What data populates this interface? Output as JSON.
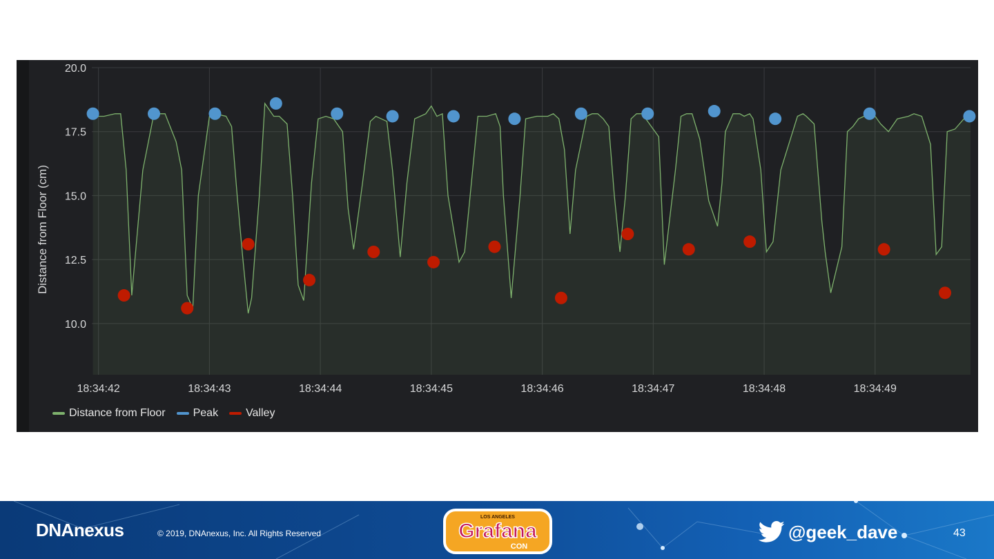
{
  "chart_data": {
    "type": "line",
    "ylabel": "Distance from Floor (cm)",
    "ylim": [
      8.0,
      20.0
    ],
    "yticks": [
      "20.0",
      "17.5",
      "15.0",
      "12.5",
      "10.0"
    ],
    "yticks_values": [
      20.0,
      17.5,
      15.0,
      12.5,
      10.0
    ],
    "xlim": [
      41.94,
      49.86
    ],
    "xticks": [
      "18:34:42",
      "18:34:43",
      "18:34:44",
      "18:34:45",
      "18:34:46",
      "18:34:47",
      "18:34:48",
      "18:34:49"
    ],
    "xticks_values": [
      42,
      43,
      44,
      45,
      46,
      47,
      48,
      49
    ],
    "grid": true,
    "legend_position": "bottom-left",
    "series": [
      {
        "name": "Distance from Floor",
        "color": "#7eb26d",
        "kind": "line",
        "x": [
          41.95,
          42.05,
          42.15,
          42.2,
          42.25,
          42.3,
          42.4,
          42.5,
          42.6,
          42.7,
          42.75,
          42.8,
          42.85,
          42.9,
          43.0,
          43.05,
          43.15,
          43.2,
          43.25,
          43.3,
          43.35,
          43.38,
          43.45,
          43.5,
          43.58,
          43.63,
          43.7,
          43.75,
          43.8,
          43.85,
          43.92,
          43.98,
          44.05,
          44.12,
          44.2,
          44.25,
          44.3,
          44.38,
          44.45,
          44.5,
          44.55,
          44.6,
          44.65,
          44.72,
          44.78,
          44.85,
          44.9,
          44.95,
          45.0,
          45.05,
          45.1,
          45.15,
          45.25,
          45.3,
          45.35,
          45.42,
          45.5,
          45.58,
          45.62,
          45.65,
          45.72,
          45.8,
          45.85,
          45.95,
          46.05,
          46.1,
          46.15,
          46.2,
          46.25,
          46.3,
          46.4,
          46.45,
          46.5,
          46.55,
          46.6,
          46.65,
          46.7,
          46.75,
          46.8,
          46.85,
          46.9,
          47.05,
          47.1,
          47.2,
          47.25,
          47.3,
          47.35,
          47.42,
          47.5,
          47.58,
          47.62,
          47.65,
          47.72,
          47.78,
          47.82,
          47.87,
          47.9,
          47.97,
          48.02,
          48.08,
          48.15,
          48.3,
          48.35,
          48.38,
          48.45,
          48.52,
          48.55,
          48.6,
          48.7,
          48.75,
          48.8,
          48.85,
          48.9,
          48.95,
          49.0,
          49.05,
          49.12,
          49.2,
          49.3,
          49.35,
          49.42,
          49.5,
          49.55,
          49.6,
          49.65,
          49.72,
          49.8,
          49.86
        ],
        "y": [
          18.1,
          18.1,
          18.2,
          18.2,
          16.0,
          11.1,
          16.0,
          18.2,
          18.2,
          17.1,
          16.0,
          11.1,
          10.6,
          15.0,
          18.1,
          18.2,
          18.1,
          17.7,
          15.0,
          12.6,
          10.4,
          11.0,
          15.0,
          18.6,
          18.1,
          18.1,
          17.8,
          15.0,
          11.5,
          10.9,
          15.5,
          18.0,
          18.1,
          18.0,
          17.5,
          14.5,
          12.9,
          15.5,
          17.9,
          18.1,
          18.0,
          17.9,
          16.0,
          12.6,
          15.5,
          18.0,
          18.1,
          18.2,
          18.5,
          18.1,
          18.2,
          15.0,
          12.4,
          12.8,
          15.0,
          18.1,
          18.1,
          18.2,
          17.7,
          15.0,
          11.0,
          15.0,
          18.0,
          18.1,
          18.1,
          18.2,
          18.0,
          16.8,
          13.5,
          16.0,
          18.1,
          18.2,
          18.2,
          18.0,
          17.7,
          15.0,
          12.8,
          15.0,
          18.0,
          18.2,
          18.2,
          17.3,
          12.3,
          16.0,
          18.1,
          18.2,
          18.2,
          17.2,
          14.8,
          13.8,
          15.5,
          17.5,
          18.2,
          18.2,
          18.1,
          18.2,
          18.0,
          16.0,
          12.8,
          13.2,
          16.0,
          18.1,
          18.2,
          18.1,
          17.8,
          14.0,
          12.8,
          11.2,
          13.0,
          17.5,
          17.7,
          18.0,
          18.1,
          18.2,
          18.1,
          17.8,
          17.5,
          18.0,
          18.1,
          18.2,
          18.1,
          17.0,
          12.7,
          13.0,
          17.5,
          17.6,
          18.0,
          18.1
        ],
        "note_unused": ""
      },
      {
        "name": "Peak",
        "color": "#5195ce",
        "kind": "points",
        "x": [
          41.95,
          42.5,
          43.05,
          43.6,
          44.15,
          44.65,
          45.2,
          45.75,
          46.35,
          46.95,
          47.55,
          48.1,
          48.95,
          49.85
        ],
        "y": [
          18.2,
          18.2,
          18.2,
          18.6,
          18.2,
          18.1,
          18.1,
          18.0,
          18.2,
          18.2,
          18.3,
          18.0,
          18.2,
          18.1
        ]
      },
      {
        "name": "Valley",
        "color": "#bf1b00",
        "kind": "points",
        "x": [
          42.23,
          42.8,
          43.35,
          43.9,
          44.48,
          45.02,
          45.57,
          46.17,
          46.77,
          47.32,
          47.87,
          49.08,
          49.63
        ],
        "y": [
          11.1,
          10.6,
          13.1,
          11.7,
          12.8,
          12.4,
          13.0,
          11.0,
          13.5,
          12.9,
          13.2,
          12.9,
          11.2
        ]
      }
    ]
  },
  "footer": {
    "brand": "DNAnexus",
    "copyright": "© 2019, DNAnexus, Inc. All Rights Reserved",
    "logo_top": "LOS ANGELES",
    "logo_main": "Grafana",
    "logo_sub": "CON",
    "handle": "@geek_dave",
    "page_number": "43"
  }
}
